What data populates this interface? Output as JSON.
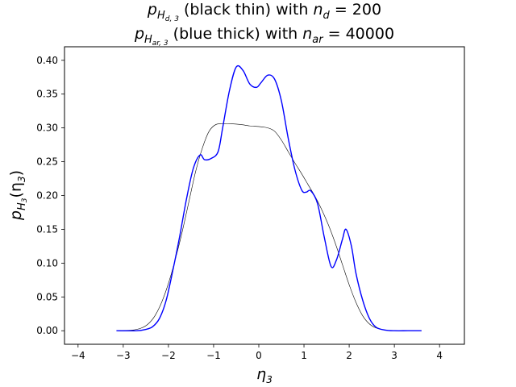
{
  "chart_data": {
    "type": "line",
    "title": {
      "line1": {
        "p": "p",
        "sub_main": "H",
        "sub_sub": "d, 3",
        "middle": " (black thin) with ",
        "n": "n",
        "n_sub": "d",
        "eq": " = 200"
      },
      "line2": {
        "p": "p",
        "sub_main": "H",
        "sub_sub": "ar, 3",
        "middle": " (blue thick) with ",
        "n": "n",
        "n_sub": "ar",
        "eq": " = 40000"
      }
    },
    "xlabel": {
      "main": "η",
      "sub": "3"
    },
    "ylabel": {
      "p": "p",
      "sub_main": "H",
      "sub_sub": "3",
      "arg": "(η",
      "arg_sub": "3",
      "close": ")"
    },
    "xlim": [
      -4.3,
      4.55
    ],
    "ylim": [
      -0.02,
      0.42
    ],
    "x_ticks": [
      -4,
      -3,
      -2,
      -1,
      0,
      1,
      2,
      3,
      4
    ],
    "x_tick_labels": [
      "−4",
      "−3",
      "−2",
      "−1",
      "0",
      "1",
      "2",
      "3",
      "4"
    ],
    "y_ticks": [
      0.0,
      0.05,
      0.1,
      0.15,
      0.2,
      0.25,
      0.3,
      0.35,
      0.4
    ],
    "y_tick_labels": [
      "0.00",
      "0.05",
      "0.10",
      "0.15",
      "0.20",
      "0.25",
      "0.30",
      "0.35",
      "0.40"
    ],
    "grid": false,
    "series": [
      {
        "color": "#000000",
        "style": "thin",
        "x": [
          -3.15,
          -2.8,
          -2.6,
          -2.45,
          -2.3,
          -2.15,
          -2.0,
          -1.85,
          -1.7,
          -1.55,
          -1.4,
          -1.25,
          -1.1,
          -0.95,
          -0.8,
          -0.6,
          -0.4,
          -0.2,
          0.0,
          0.2,
          0.35,
          0.5,
          0.65,
          0.8,
          0.95,
          1.1,
          1.25,
          1.4,
          1.55,
          1.7,
          1.85,
          2.0,
          2.15,
          2.3,
          2.45,
          2.6,
          2.8,
          3.0,
          3.3,
          3.6
        ],
        "y": [
          0.0,
          0.001,
          0.004,
          0.01,
          0.022,
          0.042,
          0.07,
          0.105,
          0.145,
          0.19,
          0.235,
          0.27,
          0.295,
          0.305,
          0.306,
          0.306,
          0.305,
          0.303,
          0.302,
          0.3,
          0.295,
          0.282,
          0.265,
          0.248,
          0.232,
          0.215,
          0.198,
          0.178,
          0.155,
          0.128,
          0.098,
          0.068,
          0.042,
          0.022,
          0.01,
          0.004,
          0.001,
          0.0,
          0.0,
          0.0
        ]
      },
      {
        "color": "#0000ff",
        "style": "thick",
        "x": [
          -3.15,
          -2.7,
          -2.5,
          -2.35,
          -2.2,
          -2.05,
          -1.9,
          -1.75,
          -1.6,
          -1.45,
          -1.3,
          -1.2,
          -1.05,
          -0.9,
          -0.8,
          -0.65,
          -0.5,
          -0.35,
          -0.2,
          -0.05,
          0.05,
          0.2,
          0.35,
          0.5,
          0.65,
          0.8,
          0.95,
          1.05,
          1.15,
          1.3,
          1.45,
          1.6,
          1.72,
          1.85,
          1.93,
          2.05,
          2.15,
          2.3,
          2.45,
          2.6,
          2.8,
          3.0,
          3.3,
          3.6
        ],
        "y": [
          0.0,
          0.0,
          0.002,
          0.006,
          0.018,
          0.045,
          0.09,
          0.14,
          0.195,
          0.24,
          0.26,
          0.253,
          0.255,
          0.265,
          0.3,
          0.355,
          0.39,
          0.385,
          0.365,
          0.36,
          0.367,
          0.378,
          0.372,
          0.34,
          0.285,
          0.238,
          0.208,
          0.205,
          0.207,
          0.188,
          0.138,
          0.095,
          0.105,
          0.135,
          0.15,
          0.125,
          0.085,
          0.045,
          0.018,
          0.005,
          0.001,
          0.0,
          0.0,
          0.0
        ]
      }
    ]
  }
}
